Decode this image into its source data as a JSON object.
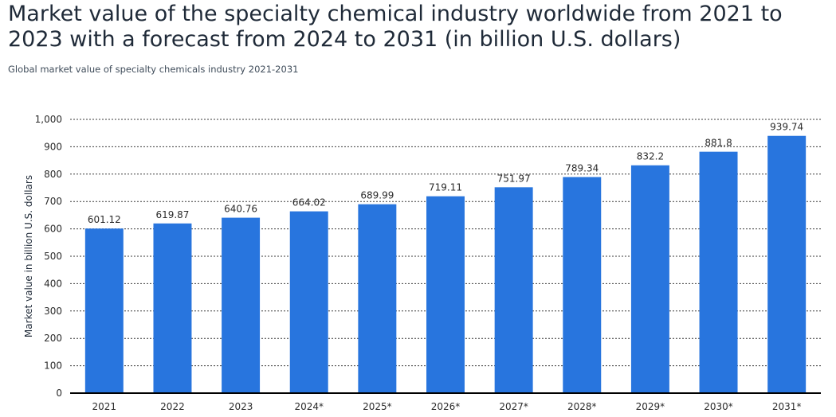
{
  "header": {
    "title": "Market value of the specialty chemical industry worldwide from 2021 to 2023 with a forecast from 2024 to 2031 (in billion U.S. dollars)",
    "subtitle": "Global market value of specialty chemicals industry 2021-2031"
  },
  "colors": {
    "bar": "#2875de",
    "grid": "#3a3a3a",
    "text": "#1f2a38"
  },
  "chart_data": {
    "type": "bar",
    "title": "Market value of the specialty chemical industry worldwide from 2021 to 2023 with a forecast from 2024 to 2031 (in billion U.S. dollars)",
    "subtitle": "Global market value of specialty chemicals industry 2021-2031",
    "xlabel": "",
    "ylabel": "Market value in billion U.S. dollars",
    "categories": [
      "2021",
      "2022",
      "2023",
      "2024*",
      "2025*",
      "2026*",
      "2027*",
      "2028*",
      "2029*",
      "2030*",
      "2031*"
    ],
    "values": [
      601.12,
      619.87,
      640.76,
      664.02,
      689.99,
      719.11,
      751.97,
      789.34,
      832.2,
      881.8,
      939.74
    ],
    "value_labels": [
      "601.12",
      "619.87",
      "640.76",
      "664.02",
      "689.99",
      "719.11",
      "751.97",
      "789.34",
      "832.2",
      "881.8",
      "939.74"
    ],
    "ylim": [
      0,
      1000
    ],
    "yticks": [
      0,
      100,
      200,
      300,
      400,
      500,
      600,
      700,
      800,
      900,
      1000
    ],
    "ytick_labels": [
      "0",
      "100",
      "200",
      "300",
      "400",
      "500",
      "600",
      "700",
      "800",
      "900",
      "1,000"
    ],
    "grid": true,
    "grid_style": "dotted",
    "legend": false
  }
}
